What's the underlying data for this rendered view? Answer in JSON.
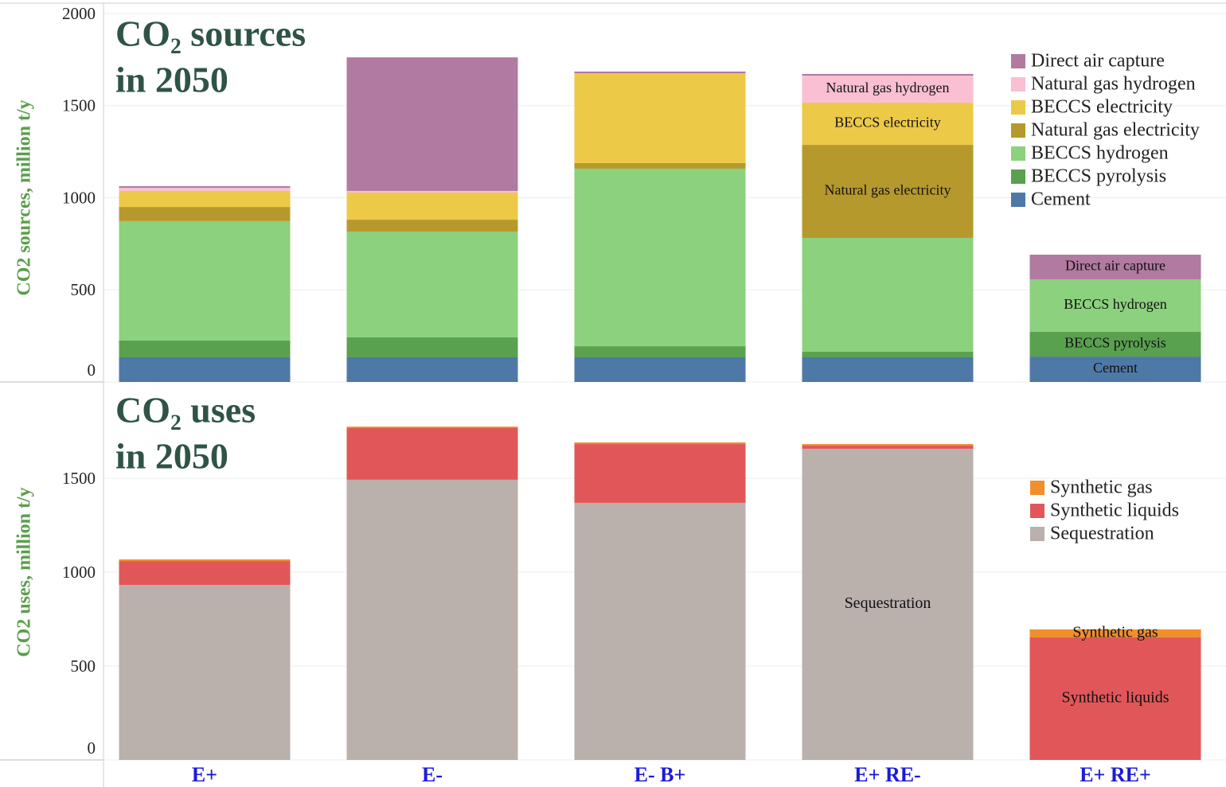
{
  "chart_data": [
    {
      "type": "bar",
      "stacked": true,
      "title": [
        "CO₂ sources",
        "in 2050"
      ],
      "ylabel": "CO2 sources, million t/y",
      "ylim": [
        0,
        2000
      ],
      "yticks": [
        0,
        500,
        1000,
        1500,
        2000
      ],
      "grid": true,
      "legend": "upper right",
      "series": [
        {
          "name": "Cement",
          "color": "#4e79a7",
          "values": [
            134,
            134,
            134,
            134,
            138
          ]
        },
        {
          "name": "BECCS pyrolysis",
          "color": "#59a14f",
          "values": [
            91,
            108,
            60,
            30,
            134
          ]
        },
        {
          "name": "BECCS hydrogen",
          "color": "#8cd17d",
          "values": [
            648,
            574,
            964,
            618,
            285
          ]
        },
        {
          "name": "Natural gas electricity",
          "color": "#b6992d",
          "values": [
            77,
            65,
            30,
            505,
            0
          ]
        },
        {
          "name": "BECCS electricity",
          "color": "#edc948",
          "values": [
            87,
            147,
            488,
            229,
            0
          ]
        },
        {
          "name": "Natural gas hydrogen",
          "color": "#fabfd2",
          "values": [
            17,
            9,
            0,
            147,
            0
          ]
        },
        {
          "name": "Direct air capture",
          "color": "#b07aa1",
          "values": [
            9,
            725,
            9,
            9,
            134
          ]
        }
      ],
      "annotations": [
        {
          "text": "Natural gas hydrogen",
          "category": "E+ RE-"
        },
        {
          "text": "BECCS electricity",
          "category": "E+ RE-"
        },
        {
          "text": "Natural gas electricity",
          "category": "E+ RE-"
        },
        {
          "text": "Direct air capture",
          "category": "E+ RE+"
        },
        {
          "text": "BECCS hydrogen",
          "category": "E+ RE+"
        },
        {
          "text": "BECCS pyrolysis",
          "category": "E+ RE+"
        },
        {
          "text": "Cement",
          "category": "E+ RE+"
        }
      ]
    },
    {
      "type": "bar",
      "stacked": true,
      "title": [
        "CO₂ uses",
        "in 2050"
      ],
      "ylabel": "CO2 uses, million t/y",
      "categories": [
        "E+",
        "E-",
        "E- B+",
        "E+ RE-",
        "E+ RE+"
      ],
      "ylim": [
        0,
        2000
      ],
      "yticks": [
        0,
        500,
        1000,
        1500
      ],
      "grid": true,
      "legend": "right",
      "series": [
        {
          "name": "Sequestration",
          "color": "#bab0ac",
          "values": [
            932,
            1492,
            1369,
            1657,
            0
          ]
        },
        {
          "name": "Synthetic liquids",
          "color": "#e15759",
          "values": [
            127,
            275,
            313,
            17,
            653
          ]
        },
        {
          "name": "Synthetic gas",
          "color": "#f28e2b",
          "values": [
            9,
            8,
            9,
            8,
            42
          ]
        }
      ],
      "annotations": [
        {
          "text": "Sequestration",
          "category": "E+ RE-"
        },
        {
          "text": "Synthetic gas",
          "category": "E+ RE+"
        },
        {
          "text": "Synthetic liquids",
          "category": "E+ RE+"
        }
      ]
    }
  ]
}
